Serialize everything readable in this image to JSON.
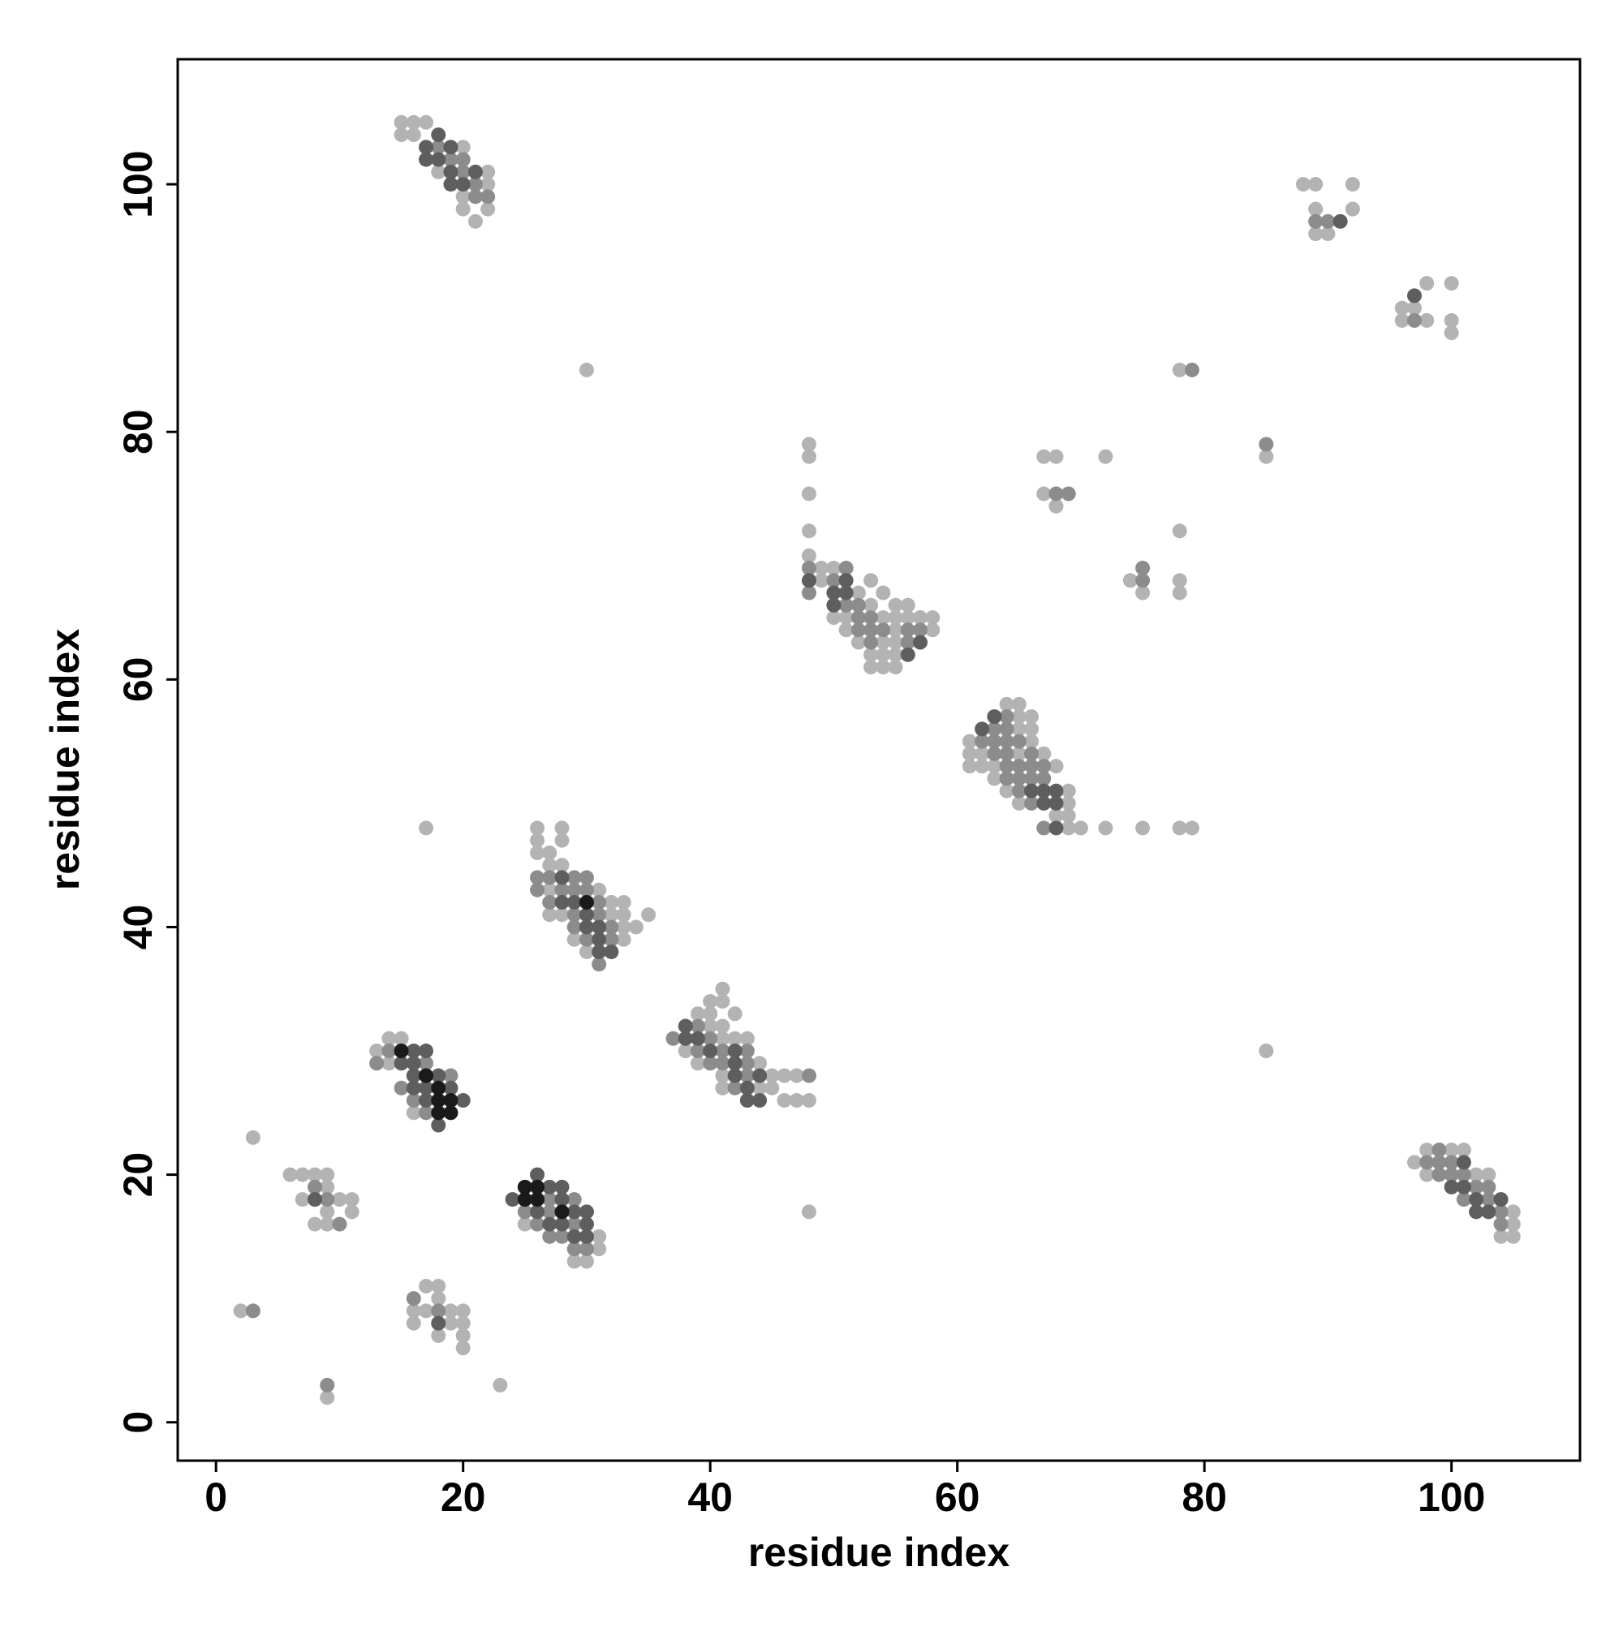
{
  "chart_data": {
    "type": "scatter",
    "xlabel": "residue index",
    "ylabel": "residue index",
    "xlim": [
      -3.1,
      110.4
    ],
    "ylim": [
      -3.1,
      110.1
    ],
    "xticks": [
      0,
      20,
      40,
      60,
      80,
      100
    ],
    "yticks": [
      0,
      20,
      40,
      60,
      80,
      100
    ],
    "series": [
      {
        "color": "#b3b3b3",
        "x": [
          15,
          16,
          17,
          15,
          16,
          20,
          18,
          22,
          22,
          20,
          20,
          22,
          21,
          88,
          89,
          92,
          89,
          92,
          89,
          90,
          98,
          100,
          96,
          97,
          96,
          98,
          100,
          100,
          30,
          78,
          48,
          48,
          48,
          48,
          48,
          67,
          68,
          72,
          85,
          67,
          68,
          78,
          74,
          78,
          75,
          78,
          49,
          50,
          49,
          53,
          52,
          54,
          53,
          55,
          56,
          50,
          51,
          54,
          55,
          56,
          57,
          58,
          51,
          55,
          58,
          52,
          54,
          55,
          53,
          54,
          55,
          53,
          54,
          55,
          64,
          65,
          65,
          66,
          65,
          66,
          61,
          66,
          61,
          62,
          65,
          67,
          61,
          62,
          63,
          68,
          63,
          64,
          69,
          65,
          69,
          68,
          69,
          69,
          70,
          72,
          75,
          78,
          79,
          17,
          48,
          85,
          26,
          28,
          26,
          28,
          26,
          27,
          27,
          28,
          27,
          31,
          32,
          33,
          27,
          28,
          32,
          33,
          35,
          33,
          34,
          29,
          33,
          30,
          41,
          40,
          41,
          39,
          40,
          42,
          40,
          41,
          41,
          42,
          43,
          38,
          39,
          44,
          41,
          45,
          46,
          47,
          41,
          44,
          45,
          46,
          47,
          48,
          14,
          15,
          13,
          14,
          16,
          25,
          31,
          31,
          29,
          30,
          6,
          7,
          8,
          9,
          9,
          7,
          10,
          11,
          9,
          11,
          8,
          9,
          3,
          17,
          18,
          18,
          16,
          17,
          19,
          20,
          16,
          19,
          20,
          18,
          20,
          20,
          2,
          9,
          23,
          98,
          100,
          101,
          97,
          98,
          102,
          103,
          105,
          105,
          104,
          105
        ],
        "y": [
          105,
          105,
          105,
          104,
          104,
          103,
          101,
          101,
          100,
          99,
          98,
          98,
          97,
          100,
          100,
          100,
          98,
          98,
          96,
          96,
          92,
          92,
          90,
          90,
          89,
          89,
          89,
          88,
          85,
          85,
          79,
          78,
          75,
          72,
          70,
          78,
          78,
          78,
          78,
          75,
          74,
          72,
          68,
          68,
          67,
          67,
          69,
          69,
          68,
          68,
          67,
          67,
          66,
          66,
          66,
          65,
          65,
          65,
          65,
          65,
          65,
          65,
          64,
          64,
          64,
          63,
          63,
          63,
          62,
          62,
          62,
          61,
          61,
          61,
          58,
          58,
          57,
          57,
          56,
          56,
          55,
          55,
          54,
          54,
          54,
          54,
          53,
          53,
          53,
          53,
          52,
          51,
          51,
          50,
          50,
          49,
          49,
          48,
          48,
          48,
          48,
          48,
          48,
          48,
          17,
          30,
          48,
          48,
          47,
          47,
          46,
          46,
          45,
          45,
          43,
          43,
          42,
          42,
          41,
          41,
          41,
          41,
          41,
          40,
          40,
          39,
          39,
          38,
          35,
          34,
          34,
          33,
          33,
          33,
          32,
          32,
          31,
          31,
          31,
          30,
          29,
          29,
          28,
          28,
          28,
          28,
          27,
          27,
          27,
          26,
          26,
          26,
          31,
          31,
          30,
          29,
          25,
          16,
          15,
          14,
          13,
          13,
          20,
          20,
          20,
          20,
          19,
          18,
          18,
          18,
          17,
          17,
          16,
          16,
          23,
          11,
          11,
          10,
          9,
          9,
          9,
          9,
          8,
          8,
          8,
          7,
          7,
          6,
          9,
          2,
          3,
          22,
          22,
          22,
          21,
          20,
          20,
          20,
          17,
          16,
          15,
          15
        ]
      },
      {
        "color": "#8c8c8c",
        "x": [
          18,
          19,
          20,
          20,
          21,
          21,
          22,
          89,
          90,
          97,
          79,
          85,
          68,
          69,
          75,
          75,
          48,
          51,
          50,
          48,
          51,
          52,
          52,
          53,
          52,
          53,
          54,
          56,
          57,
          53,
          56,
          64,
          63,
          64,
          62,
          63,
          64,
          65,
          63,
          64,
          66,
          64,
          65,
          66,
          67,
          64,
          65,
          66,
          67,
          65,
          66,
          67,
          26,
          27,
          29,
          30,
          26,
          28,
          29,
          30,
          27,
          31,
          29,
          31,
          29,
          32,
          30,
          32,
          31,
          39,
          37,
          40,
          39,
          41,
          43,
          40,
          41,
          43,
          43,
          48,
          42,
          13,
          17,
          14,
          19,
          15,
          16,
          17,
          27,
          29,
          25,
          27,
          26,
          29,
          27,
          28,
          29,
          30,
          8,
          9,
          10,
          16,
          18,
          3,
          9,
          99,
          98,
          99,
          100,
          99,
          100,
          101,
          102,
          103,
          101,
          103,
          104,
          104
        ],
        "y": [
          103,
          102,
          102,
          101,
          100,
          99,
          99,
          97,
          97,
          89,
          85,
          79,
          75,
          75,
          69,
          68,
          69,
          69,
          68,
          67,
          66,
          66,
          65,
          65,
          64,
          64,
          64,
          64,
          64,
          63,
          63,
          57,
          56,
          56,
          55,
          55,
          55,
          55,
          54,
          54,
          54,
          53,
          53,
          53,
          53,
          52,
          52,
          52,
          52,
          51,
          50,
          48,
          44,
          44,
          44,
          44,
          43,
          43,
          43,
          43,
          42,
          42,
          41,
          41,
          40,
          40,
          39,
          39,
          37,
          32,
          31,
          31,
          30,
          30,
          30,
          29,
          29,
          29,
          28,
          28,
          27,
          29,
          29,
          30,
          28,
          27,
          26,
          25,
          18,
          18,
          17,
          17,
          16,
          16,
          15,
          15,
          14,
          14,
          19,
          18,
          16,
          10,
          9,
          9,
          3,
          22,
          21,
          21,
          21,
          20,
          20,
          20,
          19,
          19,
          18,
          18,
          17,
          16
        ]
      },
      {
        "color": "#5e5e5e",
        "x": [
          18,
          17,
          19,
          17,
          18,
          19,
          21,
          19,
          20,
          91,
          97,
          48,
          51,
          50,
          51,
          50,
          57,
          56,
          63,
          62,
          66,
          67,
          68,
          67,
          68,
          68,
          28,
          28,
          29,
          30,
          30,
          31,
          31,
          31,
          32,
          38,
          38,
          39,
          40,
          42,
          42,
          42,
          44,
          43,
          43,
          44,
          16,
          17,
          15,
          16,
          16,
          18,
          16,
          17,
          19,
          17,
          20,
          18,
          26,
          27,
          28,
          24,
          28,
          26,
          29,
          30,
          27,
          28,
          30,
          29,
          30,
          8,
          18,
          101,
          100,
          101,
          102,
          104,
          102,
          103
        ],
        "y": [
          104,
          103,
          103,
          102,
          102,
          101,
          101,
          100,
          100,
          97,
          91,
          68,
          68,
          67,
          67,
          66,
          63,
          62,
          57,
          56,
          51,
          51,
          51,
          50,
          50,
          48,
          44,
          42,
          42,
          41,
          40,
          40,
          39,
          38,
          38,
          32,
          31,
          31,
          30,
          30,
          29,
          28,
          28,
          27,
          26,
          26,
          30,
          30,
          29,
          29,
          28,
          28,
          27,
          27,
          27,
          26,
          26,
          24,
          20,
          19,
          19,
          18,
          18,
          17,
          17,
          17,
          16,
          16,
          16,
          15,
          15,
          18,
          8,
          21,
          19,
          19,
          18,
          18,
          17,
          17
        ]
      },
      {
        "color": "#1a1a1a",
        "x": [
          30,
          15,
          17,
          18,
          18,
          19,
          18,
          19,
          25,
          26,
          25,
          26,
          28
        ],
        "y": [
          42,
          30,
          28,
          27,
          26,
          26,
          25,
          25,
          19,
          19,
          18,
          18,
          17
        ]
      }
    ]
  }
}
